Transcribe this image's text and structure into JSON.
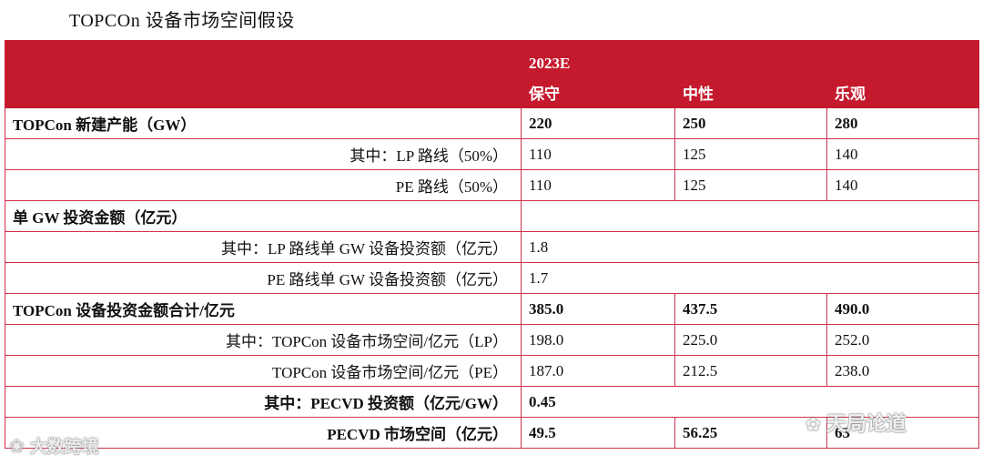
{
  "title": "TOPCOn 设备市场空间假设",
  "header": {
    "year": "2023E",
    "scenarios": [
      "保守",
      "中性",
      "乐观"
    ]
  },
  "rows": [
    {
      "label": "TOPCon 新建产能（GW）",
      "values": [
        "220",
        "250",
        "280"
      ]
    },
    {
      "label": "其中：LP 路线（50%）",
      "values": [
        "110",
        "125",
        "140"
      ]
    },
    {
      "label": "PE 路线（50%）",
      "values": [
        "110",
        "125",
        "140"
      ]
    },
    {
      "label": "单 GW 投资金额（亿元）",
      "values": []
    },
    {
      "label": "其中：LP 路线单 GW 设备投资额（亿元）",
      "values": [
        "1.8"
      ]
    },
    {
      "label": "PE 路线单 GW 设备投资额（亿元）",
      "values": [
        "1.7"
      ]
    },
    {
      "label": "TOPCon 设备投资金额合计/亿元",
      "values": [
        "385.0",
        "437.5",
        "490.0"
      ]
    },
    {
      "label": "其中：TOPCon 设备市场空间/亿元（LP）",
      "values": [
        "198.0",
        "225.0",
        "252.0"
      ]
    },
    {
      "label": "TOPCon 设备市场空间/亿元（PE）",
      "values": [
        "187.0",
        "212.5",
        "238.0"
      ]
    },
    {
      "label": "其中：PECVD 投资额（亿元/GW）",
      "values": [
        "0.45"
      ]
    },
    {
      "label": "PECVD 市场空间（亿元）",
      "values": [
        "49.5",
        "56.25",
        "63"
      ]
    }
  ],
  "watermarks": {
    "left": "大数跨境",
    "right": "天局论道"
  },
  "colors": {
    "header_bg": "#c5192d",
    "border": "#d0304a"
  }
}
